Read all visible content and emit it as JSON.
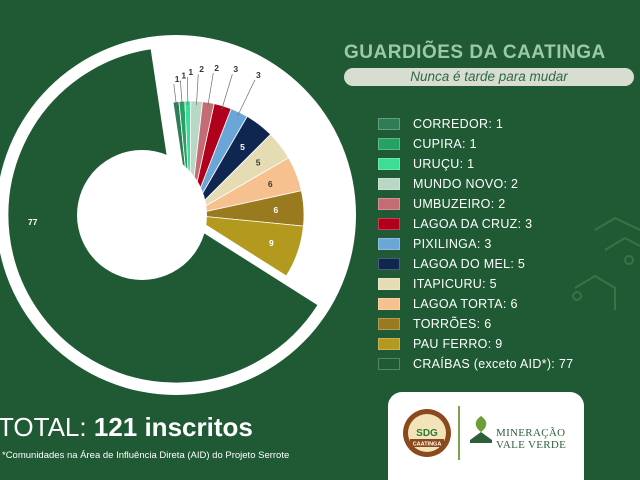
{
  "header": {
    "title": "GUARDIÕES DA CAATINGA",
    "subtitle": "Nunca é tarde para mudar"
  },
  "chart_data": {
    "type": "pie",
    "categories": [
      "CORREDOR",
      "CUPIRA",
      "URUÇU",
      "MUNDO NOVO",
      "UMBUZEIRO",
      "LAGOA DA CRUZ",
      "PIXILINGA",
      "LAGOA DO MEL",
      "ITAPICURU",
      "LAGOA TORTA",
      "TORRÕES",
      "PAU FERRO",
      "CRAÍBAS (exceto AID*)"
    ],
    "values": [
      1,
      1,
      1,
      2,
      2,
      3,
      3,
      5,
      5,
      6,
      6,
      9,
      77
    ],
    "colors": [
      "#2e7d55",
      "#27a063",
      "#3ddc97",
      "#b9d7c7",
      "#c46b73",
      "#b1001c",
      "#6aa6d8",
      "#0f2650",
      "#e6dcb4",
      "#f6c08f",
      "#9a7a1e",
      "#b39a1e",
      "#1f5a35"
    ],
    "legend_labels": [
      "CORREDOR: 1",
      "CUPIRA: 1",
      "URUÇU: 1",
      "MUNDO NOVO: 2",
      "UMBUZEIRO: 2",
      "LAGOA DA CRUZ: 3",
      "PIXILINGA: 3",
      "LAGOA DO MEL: 5",
      "ITAPICURU: 5",
      "LAGOA TORTA: 6",
      "TORRÕES: 6",
      "PAU FERRO: 9",
      "CRAÍBAS (exceto AID*): 77"
    ],
    "donut": true,
    "legend_position": "right"
  },
  "total": {
    "label": "TOTAL:",
    "value": "121 inscritos"
  },
  "footnote": "*Comunidades na Área de Influência Direta (AID) do Projeto Serrote",
  "logos": {
    "seal_text": "CAATINGA",
    "seal_top": "GUARDIÕES",
    "seal_initials": "SDG",
    "company_line1": "MINERAÇÃO",
    "company_line2": "VALE VERDE"
  }
}
